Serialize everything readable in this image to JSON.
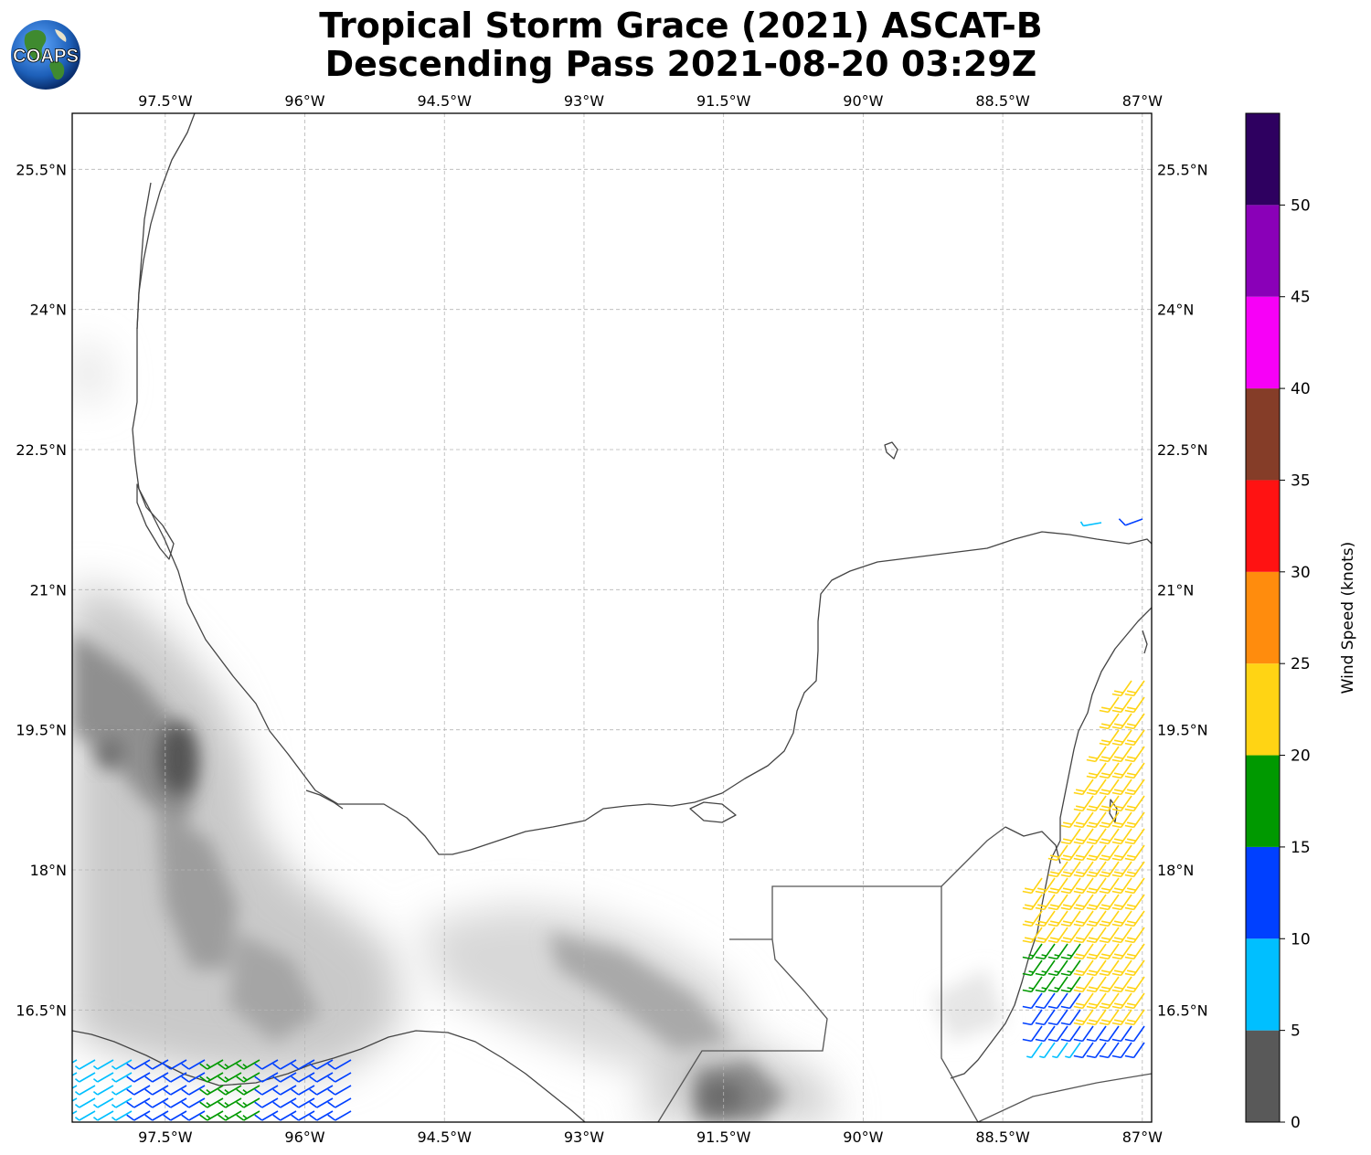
{
  "title_line1": "Tropical Storm Grace (2021) ASCAT-B",
  "title_line2": "Descending Pass 2021-08-20 03:29Z",
  "logo_text": "COAPS",
  "map": {
    "lon_range": [
      -98.5,
      -86.9
    ],
    "lat_range": [
      15.3,
      26.1
    ],
    "lon_ticks": [
      {
        "value": -97.5,
        "label": "97.5°W"
      },
      {
        "value": -96.0,
        "label": "96°W"
      },
      {
        "value": -94.5,
        "label": "94.5°W"
      },
      {
        "value": -93.0,
        "label": "93°W"
      },
      {
        "value": -91.5,
        "label": "91.5°W"
      },
      {
        "value": -90.0,
        "label": "90°W"
      },
      {
        "value": -88.5,
        "label": "88.5°W"
      },
      {
        "value": -87.0,
        "label": "87°W"
      }
    ],
    "lat_ticks": [
      {
        "value": 25.5,
        "label": "25.5°N"
      },
      {
        "value": 24.0,
        "label": "24°N"
      },
      {
        "value": 22.5,
        "label": "22.5°N"
      },
      {
        "value": 21.0,
        "label": "21°N"
      },
      {
        "value": 19.5,
        "label": "19.5°N"
      },
      {
        "value": 18.0,
        "label": "18°N"
      },
      {
        "value": 16.5,
        "label": "16.5°N"
      }
    ],
    "terrain_shading": "grayscale elevation",
    "coastline_color": "#444444",
    "grid": true
  },
  "colorbar": {
    "label": "Wind Speed (knots)",
    "ticks": [
      "0",
      "5",
      "10",
      "15",
      "20",
      "25",
      "30",
      "35",
      "40",
      "45",
      "50"
    ],
    "bins": [
      {
        "from": 0,
        "to": 5,
        "color": "#595959"
      },
      {
        "from": 5,
        "to": 10,
        "color": "#00bfff"
      },
      {
        "from": 10,
        "to": 15,
        "color": "#0040ff"
      },
      {
        "from": 15,
        "to": 20,
        "color": "#009900"
      },
      {
        "from": 20,
        "to": 25,
        "color": "#ffd414"
      },
      {
        "from": 25,
        "to": 30,
        "color": "#ff8c0d"
      },
      {
        "from": 30,
        "to": 35,
        "color": "#ff1212"
      },
      {
        "from": 35,
        "to": 40,
        "color": "#853d28"
      },
      {
        "from": 40,
        "to": 45,
        "color": "#f700f7"
      },
      {
        "from": 45,
        "to": 50,
        "color": "#8a00b8"
      },
      {
        "from": 50,
        "to": 55,
        "color": "#2e0060"
      }
    ]
  },
  "wind_swaths": [
    {
      "name": "east-swath",
      "lon_min": -87.9,
      "lon_max": -86.9,
      "lat_min": 16.0,
      "lat_max": 20.1
    },
    {
      "name": "southwest-swath",
      "lon_min": -98.5,
      "lon_max": -95.5,
      "lat_min": 15.3,
      "lat_max": 15.9
    }
  ]
}
